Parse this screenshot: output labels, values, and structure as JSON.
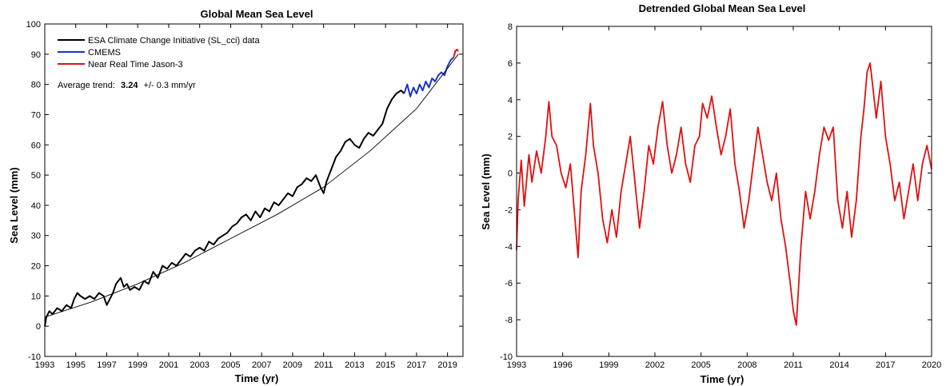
{
  "chart_data": [
    {
      "type": "line",
      "title": "Global Mean Sea Level",
      "xlabel": "Time (yr)",
      "ylabel": "Sea Level (mm)",
      "xlim": [
        1993,
        2020
      ],
      "ylim": [
        -10,
        100
      ],
      "xticks": [
        1993,
        1995,
        1997,
        1999,
        2001,
        2003,
        2005,
        2007,
        2009,
        2011,
        2013,
        2015,
        2017,
        2019
      ],
      "yticks": [
        -10,
        0,
        10,
        20,
        30,
        40,
        50,
        60,
        70,
        80,
        90,
        100
      ],
      "grid": false,
      "legend": "top-left",
      "annotation": {
        "prefix": "Average trend:",
        "value": "3.24",
        "suffix": "+/- 0.3 mm/yr"
      },
      "series": [
        {
          "name": "ESA Climate Change Initiative (SL_cci) data",
          "color": "#000000",
          "x": [
            1993.0,
            1993.1,
            1993.3,
            1993.5,
            1993.8,
            1994.1,
            1994.4,
            1994.7,
            1994.9,
            1995.1,
            1995.3,
            1995.6,
            1995.9,
            1996.2,
            1996.5,
            1996.8,
            1997.0,
            1997.2,
            1997.4,
            1997.6,
            1997.9,
            1998.1,
            1998.3,
            1998.5,
            1998.8,
            1999.1,
            1999.4,
            1999.7,
            2000.0,
            2000.3,
            2000.6,
            2000.9,
            2001.2,
            2001.5,
            2001.8,
            2002.1,
            2002.4,
            2002.7,
            2003.0,
            2003.3,
            2003.6,
            2003.9,
            2004.2,
            2004.5,
            2004.8,
            2005.1,
            2005.4,
            2005.7,
            2006.0,
            2006.3,
            2006.6,
            2006.9,
            2007.2,
            2007.5,
            2007.8,
            2008.1,
            2008.4,
            2008.7,
            2009.0,
            2009.3,
            2009.6,
            2009.9,
            2010.2,
            2010.5,
            2010.8,
            2011.0,
            2011.2,
            2011.5,
            2011.8,
            2012.1,
            2012.4,
            2012.7,
            2013.0,
            2013.3,
            2013.6,
            2013.9,
            2014.2,
            2014.5,
            2014.8,
            2015.1,
            2015.4,
            2015.7,
            2016.0,
            2016.2
          ],
          "y": [
            0,
            3,
            5,
            4,
            6,
            5,
            7,
            6,
            9,
            11,
            10,
            9,
            10,
            9,
            11,
            10,
            7,
            9,
            11,
            14,
            16,
            13,
            14,
            12,
            13,
            12,
            15,
            14,
            18,
            16,
            20,
            19,
            21,
            20,
            22,
            24,
            23,
            25,
            26,
            25,
            28,
            27,
            29,
            30,
            31,
            33,
            34,
            36,
            37,
            35,
            38,
            36,
            39,
            38,
            41,
            40,
            42,
            44,
            43,
            46,
            47,
            49,
            48,
            50,
            46,
            44,
            48,
            52,
            56,
            58,
            61,
            62,
            60,
            59,
            62,
            64,
            63,
            65,
            67,
            72,
            75,
            77,
            78,
            77
          ]
        },
        {
          "name": "CMEMS",
          "color": "#1a33c8",
          "x": [
            2016.2,
            2016.4,
            2016.6,
            2016.8,
            2017.0,
            2017.2,
            2017.4,
            2017.6,
            2017.8,
            2018.0,
            2018.2,
            2018.4,
            2018.6,
            2018.8,
            2019.0,
            2019.2,
            2019.4
          ],
          "y": [
            77,
            80,
            76,
            79,
            77,
            80,
            78,
            81,
            79,
            82,
            81,
            83,
            84,
            83,
            86,
            88,
            89
          ]
        },
        {
          "name": "Near Real Time Jason-3",
          "color": "#e01010",
          "x": [
            2019.4,
            2019.5,
            2019.6,
            2019.7
          ],
          "y": [
            89,
            91,
            91.5,
            91
          ]
        },
        {
          "name": "",
          "color": "#000000",
          "x": [
            1993.0,
            1996.0,
            1999.0,
            2002.0,
            2005.0,
            2008.0,
            2011.0,
            2014.0,
            2017.0,
            2019.7
          ],
          "y": [
            3,
            8,
            14,
            21,
            29,
            37,
            46,
            58,
            72,
            90
          ]
        }
      ]
    },
    {
      "type": "line",
      "title": "Detrended Global Mean Sea Level",
      "xlabel": "Time (yr)",
      "ylabel": "Sea Level (mm)",
      "xlim": [
        1993,
        2020
      ],
      "ylim": [
        -10,
        8
      ],
      "xticks": [
        1993,
        1996,
        1999,
        2002,
        2005,
        2008,
        2011,
        2014,
        2017,
        2020
      ],
      "yticks": [
        -10,
        -8,
        -6,
        -4,
        -2,
        0,
        2,
        4,
        6,
        8
      ],
      "grid": false,
      "series": [
        {
          "name": "",
          "color": "#e01010",
          "x": [
            1993.0,
            1993.1,
            1993.3,
            1993.5,
            1993.8,
            1994.0,
            1994.3,
            1994.6,
            1994.9,
            1995.1,
            1995.3,
            1995.6,
            1995.9,
            1996.2,
            1996.5,
            1996.8,
            1997.0,
            1997.2,
            1997.5,
            1997.8,
            1998.0,
            1998.3,
            1998.6,
            1998.9,
            1999.2,
            1999.5,
            1999.8,
            2000.1,
            2000.4,
            2000.7,
            2001.0,
            2001.3,
            2001.6,
            2001.9,
            2002.2,
            2002.5,
            2002.8,
            2003.1,
            2003.4,
            2003.7,
            2004.0,
            2004.3,
            2004.6,
            2004.9,
            2005.1,
            2005.4,
            2005.7,
            2006.0,
            2006.3,
            2006.6,
            2006.9,
            2007.2,
            2007.5,
            2007.8,
            2008.1,
            2008.4,
            2008.7,
            2009.0,
            2009.3,
            2009.6,
            2009.9,
            2010.2,
            2010.5,
            2010.8,
            2011.0,
            2011.2,
            2011.5,
            2011.8,
            2012.1,
            2012.4,
            2012.7,
            2013.0,
            2013.3,
            2013.6,
            2013.9,
            2014.2,
            2014.5,
            2014.8,
            2015.1,
            2015.4,
            2015.6,
            2015.8,
            2016.0,
            2016.2,
            2016.4,
            2016.7,
            2017.0,
            2017.3,
            2017.6,
            2017.9,
            2018.2,
            2018.5,
            2018.8,
            2019.1,
            2019.4,
            2019.7,
            2020.0
          ],
          "y": [
            -4.2,
            -1.5,
            0.7,
            -1.8,
            1.0,
            -0.5,
            1.2,
            0.0,
            2.0,
            3.9,
            2.0,
            1.5,
            0.0,
            -0.8,
            0.5,
            -2.5,
            -4.6,
            -1.0,
            1.0,
            3.8,
            1.5,
            0.0,
            -2.5,
            -3.8,
            -2.0,
            -3.5,
            -1.0,
            0.5,
            2.0,
            -0.5,
            -3.0,
            -1.0,
            1.5,
            0.5,
            2.5,
            3.9,
            1.5,
            0.0,
            1.0,
            2.5,
            0.5,
            -0.5,
            1.5,
            2.0,
            3.8,
            3.0,
            4.2,
            2.5,
            1.0,
            2.0,
            3.5,
            0.5,
            -1.0,
            -3.0,
            -1.5,
            0.5,
            2.5,
            1.0,
            -0.5,
            -1.5,
            0.0,
            -2.5,
            -4.0,
            -6.0,
            -7.5,
            -8.3,
            -4.0,
            -1.0,
            -2.5,
            -1.0,
            1.0,
            2.5,
            1.8,
            2.5,
            -1.5,
            -3.0,
            -1.0,
            -3.5,
            -1.5,
            2.0,
            3.5,
            5.5,
            6.0,
            4.5,
            3.0,
            5.0,
            2.0,
            0.5,
            -1.5,
            -0.5,
            -2.5,
            -1.0,
            0.5,
            -1.5,
            0.5,
            1.5,
            0.2
          ]
        }
      ]
    }
  ]
}
